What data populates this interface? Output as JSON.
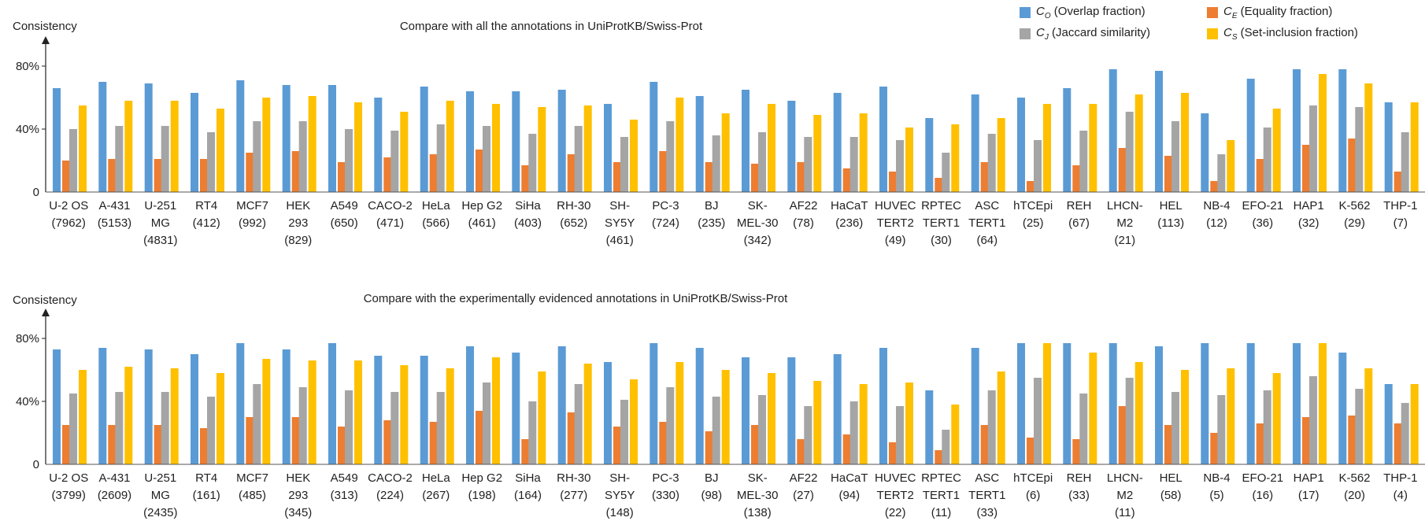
{
  "legend": [
    {
      "symbol": "C",
      "sub": "O",
      "desc": " (Overlap fraction)",
      "color": "#5b9bd5"
    },
    {
      "symbol": "C",
      "sub": "E",
      "desc": " (Equality fraction)",
      "color": "#ed7d31"
    },
    {
      "symbol": "C",
      "sub": "J",
      "desc": " (Jaccard similarity)",
      "color": "#a5a5a5"
    },
    {
      "symbol": "C",
      "sub": "S",
      "desc": " (Set-inclusion fraction)",
      "color": "#ffc000"
    }
  ],
  "chart_data": [
    {
      "type": "bar",
      "title": "Compare with all the annotations in UniProtKB/Swiss-Prot",
      "ylabel": "Consistency",
      "ylim": [
        0,
        100
      ],
      "yticks": [
        {
          "value": 0,
          "label": "0"
        },
        {
          "value": 40,
          "label": "40%"
        },
        {
          "value": 80,
          "label": "80%"
        }
      ],
      "categories": [
        [
          "U-2 OS",
          "(7962)"
        ],
        [
          "A-431",
          "(5153)"
        ],
        [
          "U-251",
          "MG",
          "(4831)"
        ],
        [
          "RT4",
          "(412)"
        ],
        [
          "MCF7",
          "(992)"
        ],
        [
          "HEK",
          "293",
          "(829)"
        ],
        [
          "A549",
          "(650)"
        ],
        [
          "CACO-2",
          "(471)"
        ],
        [
          "HeLa",
          "(566)"
        ],
        [
          "Hep G2",
          "(461)"
        ],
        [
          "SiHa",
          "(403)"
        ],
        [
          "RH-30",
          "(652)"
        ],
        [
          "SH-",
          "SY5Y",
          "(461)"
        ],
        [
          "PC-3",
          "(724)"
        ],
        [
          "BJ",
          "(235)"
        ],
        [
          "SK-",
          "MEL-30",
          "(342)"
        ],
        [
          "AF22",
          "(78)"
        ],
        [
          "HaCaT",
          "(236)"
        ],
        [
          "HUVEC",
          "TERT2",
          "(49)"
        ],
        [
          "RPTEC",
          "TERT1",
          "(30)"
        ],
        [
          "ASC",
          "TERT1",
          "(64)"
        ],
        [
          "hTCEpi",
          "(25)"
        ],
        [
          "REH",
          "(67)"
        ],
        [
          "LHCN-",
          "M2",
          "(21)"
        ],
        [
          "HEL",
          "(113)"
        ],
        [
          "NB-4",
          "(12)"
        ],
        [
          "EFO-21",
          "(36)"
        ],
        [
          "HAP1",
          "(32)"
        ],
        [
          "K-562",
          "(29)"
        ],
        [
          "THP-1",
          "(7)"
        ]
      ],
      "series": [
        {
          "name": "CO (Overlap fraction)",
          "color": "#5b9bd5",
          "values": [
            66,
            70,
            69,
            63,
            71,
            68,
            68,
            60,
            67,
            64,
            64,
            65,
            56,
            70,
            61,
            65,
            58,
            63,
            67,
            47,
            62,
            60,
            66,
            78,
            77,
            50,
            72,
            78,
            78,
            57
          ]
        },
        {
          "name": "CE (Equality fraction)",
          "color": "#ed7d31",
          "values": [
            20,
            21,
            21,
            21,
            25,
            26,
            19,
            22,
            24,
            27,
            17,
            24,
            19,
            26,
            19,
            18,
            19,
            15,
            13,
            9,
            19,
            7,
            17,
            28,
            23,
            7,
            21,
            30,
            34,
            13
          ]
        },
        {
          "name": "CJ (Jaccard similarity)",
          "color": "#a5a5a5",
          "values": [
            40,
            42,
            42,
            38,
            45,
            45,
            40,
            39,
            43,
            42,
            37,
            42,
            35,
            45,
            36,
            38,
            35,
            35,
            33,
            25,
            37,
            33,
            39,
            51,
            45,
            24,
            41,
            55,
            54,
            38
          ]
        },
        {
          "name": "CS (Set-inclusion fraction)",
          "color": "#ffc000",
          "values": [
            55,
            58,
            58,
            53,
            60,
            61,
            57,
            51,
            58,
            56,
            54,
            55,
            46,
            60,
            50,
            56,
            49,
            50,
            41,
            43,
            47,
            56,
            56,
            62,
            63,
            33,
            53,
            75,
            69,
            57
          ]
        }
      ]
    },
    {
      "type": "bar",
      "title": "Compare with the experimentally evidenced annotations in UniProtKB/Swiss-Prot",
      "ylabel": "Consistency",
      "ylim": [
        0,
        100
      ],
      "yticks": [
        {
          "value": 0,
          "label": "0"
        },
        {
          "value": 40,
          "label": "40%"
        },
        {
          "value": 80,
          "label": "80%"
        }
      ],
      "categories": [
        [
          "U-2 OS",
          "(3799)"
        ],
        [
          "A-431",
          "(2609)"
        ],
        [
          "U-251",
          "MG",
          "(2435)"
        ],
        [
          "RT4",
          "(161)"
        ],
        [
          "MCF7",
          "(485)"
        ],
        [
          "HEK",
          "293",
          "(345)"
        ],
        [
          "A549",
          "(313)"
        ],
        [
          "CACO-2",
          "(224)"
        ],
        [
          "HeLa",
          "(267)"
        ],
        [
          "Hep G2",
          "(198)"
        ],
        [
          "SiHa",
          "(164)"
        ],
        [
          "RH-30",
          "(277)"
        ],
        [
          "SH-",
          "SY5Y",
          "(148)"
        ],
        [
          "PC-3",
          "(330)"
        ],
        [
          "BJ",
          "(98)"
        ],
        [
          "SK-",
          "MEL-30",
          "(138)"
        ],
        [
          "AF22",
          "(27)"
        ],
        [
          "HaCaT",
          "(94)"
        ],
        [
          "HUVEC",
          "TERT2",
          "(22)"
        ],
        [
          "RPTEC",
          "TERT1",
          "(11)"
        ],
        [
          "ASC",
          "TERT1",
          "(33)"
        ],
        [
          "hTCEpi",
          "(6)"
        ],
        [
          "REH",
          "(33)"
        ],
        [
          "LHCN-",
          "M2",
          "(11)"
        ],
        [
          "HEL",
          "(58)"
        ],
        [
          "NB-4",
          "(5)"
        ],
        [
          "EFO-21",
          "(16)"
        ],
        [
          "HAP1",
          "(17)"
        ],
        [
          "K-562",
          "(20)"
        ],
        [
          "THP-1",
          "(4)"
        ]
      ],
      "series": [
        {
          "name": "CO (Overlap fraction)",
          "color": "#5b9bd5",
          "values": [
            73,
            74,
            73,
            70,
            77,
            73,
            77,
            69,
            69,
            75,
            71,
            75,
            65,
            77,
            74,
            68,
            68,
            70,
            74,
            47,
            74,
            77,
            77,
            77,
            75,
            77,
            77,
            77,
            71,
            51
          ]
        },
        {
          "name": "CE (Equality fraction)",
          "color": "#ed7d31",
          "values": [
            25,
            25,
            25,
            23,
            30,
            30,
            24,
            28,
            27,
            34,
            16,
            33,
            24,
            27,
            21,
            25,
            16,
            19,
            14,
            9,
            25,
            17,
            16,
            37,
            25,
            20,
            26,
            30,
            31,
            26
          ]
        },
        {
          "name": "CJ (Jaccard similarity)",
          "color": "#a5a5a5",
          "values": [
            45,
            46,
            46,
            43,
            51,
            49,
            47,
            46,
            46,
            52,
            40,
            51,
            41,
            49,
            43,
            44,
            37,
            40,
            37,
            22,
            47,
            55,
            45,
            55,
            46,
            44,
            47,
            56,
            48,
            39
          ]
        },
        {
          "name": "CS (Set-inclusion fraction)",
          "color": "#ffc000",
          "values": [
            60,
            62,
            61,
            58,
            67,
            66,
            66,
            63,
            61,
            68,
            59,
            64,
            54,
            65,
            60,
            58,
            53,
            51,
            52,
            38,
            59,
            77,
            71,
            65,
            60,
            61,
            58,
            77,
            61,
            51
          ]
        }
      ]
    }
  ]
}
